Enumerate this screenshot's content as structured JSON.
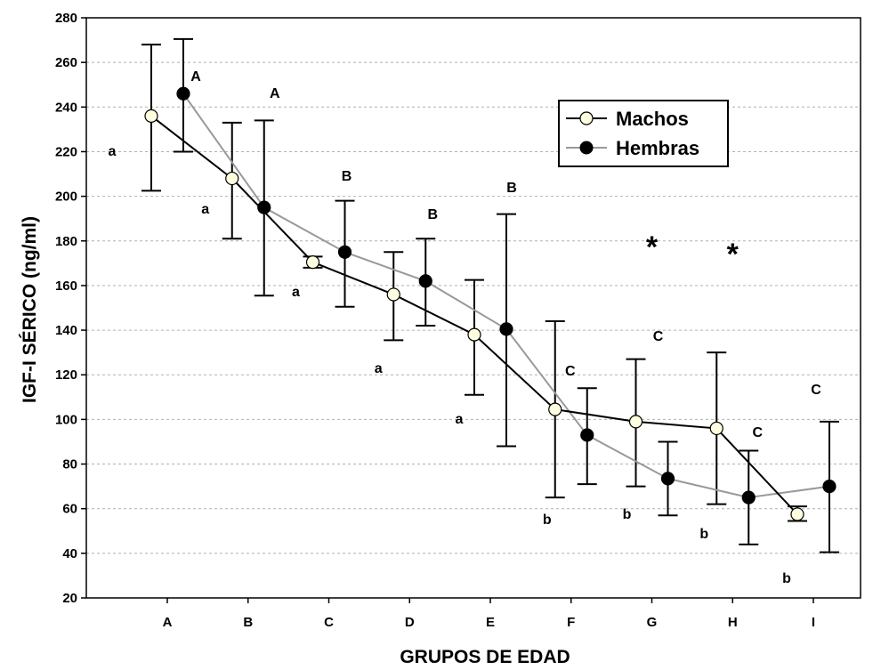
{
  "chart_data": {
    "type": "line",
    "xlabel": "GRUPOS DE EDAD",
    "ylabel": "IGF-I SÉRICO (ng/ml)",
    "categories": [
      "A",
      "B",
      "C",
      "D",
      "E",
      "F",
      "G",
      "H",
      "I"
    ],
    "ylim": [
      20,
      280
    ],
    "yticks": [
      "20",
      "40",
      "60",
      "80",
      "100",
      "120",
      "140",
      "160",
      "180",
      "200",
      "220",
      "240",
      "260",
      "280"
    ],
    "grid": "horizontal dashed",
    "legend_position": "top-right",
    "series": [
      {
        "name": "Machos",
        "marker": "open-circle",
        "line_color": "#000000",
        "marker_fill": "#ffffe0",
        "values": [
          236,
          208,
          170.5,
          156,
          138,
          104.5,
          99,
          96,
          57.5
        ],
        "err_high": [
          268,
          233,
          173,
          175,
          162.5,
          144,
          127,
          130,
          61
        ],
        "err_low": [
          202.5,
          181,
          168,
          135.5,
          111,
          65,
          70,
          62,
          54.5
        ],
        "letters": [
          "a",
          "a",
          "a",
          "a",
          "a",
          "b",
          "b",
          "b",
          "b"
        ]
      },
      {
        "name": "Hembras",
        "marker": "filled-circle",
        "line_color": "#999999",
        "marker_fill": "#000000",
        "values": [
          246,
          195,
          175,
          162,
          140.5,
          93,
          73.5,
          65,
          70
        ],
        "err_high": [
          270.5,
          234,
          198,
          181,
          192,
          114,
          90,
          86,
          99
        ],
        "err_low": [
          220,
          155.5,
          150.5,
          142,
          88,
          71,
          57,
          44,
          40.5
        ],
        "letters": [
          "A",
          "A",
          "B",
          "B",
          "B",
          "C",
          "C",
          "C",
          "C"
        ]
      }
    ],
    "significance_marks": [
      {
        "category": "G",
        "text": "*"
      },
      {
        "category": "H",
        "text": "*"
      }
    ]
  }
}
